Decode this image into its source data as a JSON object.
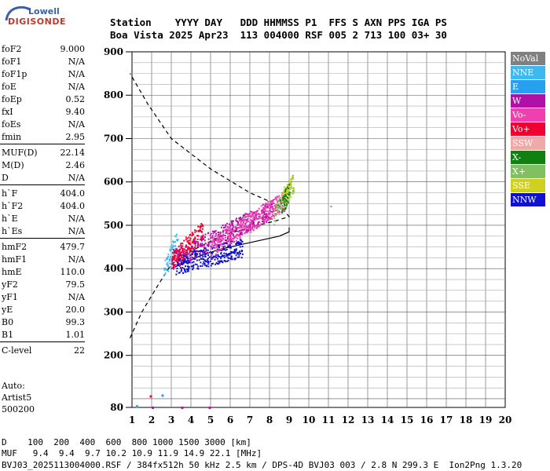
{
  "logo": {
    "top": "Lowell",
    "bottom": "DIGISONDE"
  },
  "header": {
    "line1": "Station    YYYY DAY   DDD HHMMSS P1  FFS S AXN PPS IGA PS",
    "line2": "Boa Vista 2025 Apr23  113 004000 RSF 005 2 713 100 03+ 30"
  },
  "params": [
    {
      "name": "foF2",
      "value": "9.000"
    },
    {
      "name": "foF1",
      "value": "N/A"
    },
    {
      "name": "foF1p",
      "value": "N/A"
    },
    {
      "name": "foE",
      "value": "N/A"
    },
    {
      "name": "foEp",
      "value": "0.52"
    },
    {
      "name": "fxI",
      "value": "9.40"
    },
    {
      "name": "foEs",
      "value": "N/A"
    },
    {
      "name": "fmin",
      "value": "2.95"
    },
    {
      "name": "MUF(D)",
      "value": "22.14"
    },
    {
      "name": "M(D)",
      "value": "2.46"
    },
    {
      "name": "D",
      "value": "N/A"
    },
    {
      "name": "h`F",
      "value": "404.0"
    },
    {
      "name": "h`F2",
      "value": "404.0"
    },
    {
      "name": "h`E",
      "value": "N/A"
    },
    {
      "name": "h`Es",
      "value": "N/A"
    },
    {
      "name": "hmF2",
      "value": "479.7"
    },
    {
      "name": "hmF1",
      "value": "N/A"
    },
    {
      "name": "hmE",
      "value": "110.0"
    },
    {
      "name": "yF2",
      "value": "79.5"
    },
    {
      "name": "yF1",
      "value": "N/A"
    },
    {
      "name": "yE",
      "value": "20.0"
    },
    {
      "name": "B0",
      "value": "99.3"
    },
    {
      "name": "B1",
      "value": "1.01"
    },
    {
      "name": "C-level",
      "value": "22"
    }
  ],
  "auto": {
    "line1": "Auto:",
    "line2": "Artist5",
    "line3": "500200"
  },
  "legend": [
    {
      "label": "NoVal",
      "color": "#808080"
    },
    {
      "label": "NNE",
      "color": "#3fb8f0"
    },
    {
      "label": "E",
      "color": "#27a0f0"
    },
    {
      "label": "W",
      "color": "#b010a8"
    },
    {
      "label": "Vo-",
      "color": "#f040b0"
    },
    {
      "label": "Vo+",
      "color": "#f00030"
    },
    {
      "label": "SSW",
      "color": "#f0a8a8"
    },
    {
      "label": "X-",
      "color": "#108010"
    },
    {
      "label": "X+",
      "color": "#80c060"
    },
    {
      "label": "SSE",
      "color": "#d0d020"
    },
    {
      "label": "NNW",
      "color": "#1010d0"
    }
  ],
  "bottom": {
    "d_line": "D    100  200  400  600  800 1000 1500 3000 [km]",
    "muf_line": "MUF   9.4  9.4  9.7 10.2 10.9 11.9 14.9 22.1 [MHz]",
    "footer": "BVJ03_2025113004000.RSF / 384fx512h 50 kHz 2.5 km / DPS-4D BVJ03 003 / 2.8 N 299.3 E  Ion2Png 1.3.20"
  },
  "chart_data": {
    "type": "scatter",
    "xlim": [
      1,
      20
    ],
    "ylim": [
      80,
      900
    ],
    "x_ticks": [
      1,
      2,
      3,
      4,
      5,
      6,
      7,
      8,
      9,
      10,
      11,
      12,
      13,
      14,
      15,
      16,
      17,
      18,
      19,
      20
    ],
    "y_ticks": [
      80,
      200,
      300,
      400,
      500,
      600,
      700,
      800,
      900
    ],
    "grid": true,
    "profile_solid": [
      [
        3.0,
        400
      ],
      [
        3.5,
        410
      ],
      [
        4.5,
        430
      ],
      [
        5.5,
        445
      ],
      [
        6.5,
        455
      ],
      [
        7.5,
        465
      ],
      [
        8.5,
        475
      ],
      [
        9.0,
        485
      ],
      [
        9.0,
        495
      ]
    ],
    "profile_dashed": [
      [
        0.9,
        240
      ],
      [
        1.5,
        300
      ],
      [
        2.3,
        360
      ],
      [
        3.0,
        410
      ],
      [
        4.0,
        440
      ],
      [
        5.5,
        475
      ],
      [
        7.0,
        495
      ],
      [
        8.3,
        510
      ],
      [
        9.0,
        520
      ],
      [
        8.5,
        545
      ],
      [
        7.0,
        575
      ],
      [
        5.0,
        630
      ],
      [
        3.0,
        700
      ],
      [
        1.8,
        780
      ],
      [
        0.9,
        850
      ]
    ],
    "traces": [
      {
        "series": "NNE",
        "x_range": [
          2.6,
          3.3
        ],
        "y_range": [
          395,
          470
        ]
      },
      {
        "series": "W",
        "x_range": [
          3.0,
          8.2
        ],
        "y_range": [
          420,
          540
        ]
      },
      {
        "series": "NNW",
        "x_range": [
          3.2,
          6.6
        ],
        "y_range": [
          410,
          450
        ]
      },
      {
        "series": "Vo+",
        "x_range": [
          3.0,
          4.6
        ],
        "y_range": [
          420,
          490
        ]
      },
      {
        "series": "Vo-",
        "x_range": [
          5.0,
          8.8
        ],
        "y_range": [
          450,
          560
        ]
      },
      {
        "series": "X+",
        "x_range": [
          8.2,
          9.2
        ],
        "y_range": [
          520,
          600
        ]
      },
      {
        "series": "SSE",
        "x_range": [
          8.6,
          9.2
        ],
        "y_range": [
          560,
          600
        ]
      },
      {
        "series": "X-",
        "x_range": [
          8.5,
          9.0
        ],
        "y_range": [
          540,
          580
        ]
      }
    ],
    "low_marks": [
      {
        "series": "E",
        "x": 1.2,
        "y": 85
      },
      {
        "series": "Vo+",
        "x": 1.9,
        "y": 108
      },
      {
        "series": "E",
        "x": 2.5,
        "y": 110
      },
      {
        "series": "W",
        "x": 2.0,
        "y": 82
      },
      {
        "series": "W",
        "x": 3.5,
        "y": 82
      },
      {
        "series": "W",
        "x": 4.9,
        "y": 82
      }
    ]
  }
}
